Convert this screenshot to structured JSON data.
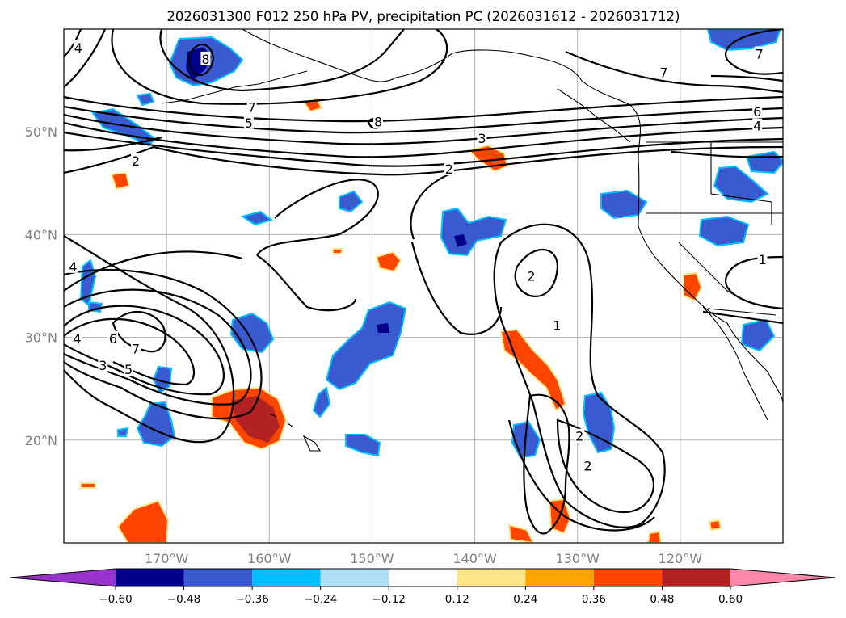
{
  "chart_data": {
    "type": "contour_map",
    "title": "2026031300 F012 250 hPa PV, precipitation PC (2026031612 - 2026031712)",
    "extent": {
      "lon": [
        -180,
        -110
      ],
      "lat": [
        10,
        60
      ]
    },
    "x_ticks": [
      {
        "lon": -170,
        "label": "170°W"
      },
      {
        "lon": -160,
        "label": "160°W"
      },
      {
        "lon": -150,
        "label": "150°W"
      },
      {
        "lon": -140,
        "label": "140°W"
      },
      {
        "lon": -130,
        "label": "130°W"
      },
      {
        "lon": -120,
        "label": "120°W"
      }
    ],
    "y_ticks": [
      {
        "lat": 20,
        "label": "20°N"
      },
      {
        "lat": 30,
        "label": "30°N"
      },
      {
        "lat": 40,
        "label": "40°N"
      },
      {
        "lat": 50,
        "label": "50°N"
      }
    ],
    "tick_color": "#808080",
    "grid": true,
    "colorbar": {
      "orientation": "horizontal",
      "extend": "both",
      "levels": [
        -0.6,
        -0.48,
        -0.36,
        -0.24,
        -0.12,
        0.12,
        0.24,
        0.36,
        0.48,
        0.6
      ],
      "tick_labels": [
        "−0.60",
        "−0.48",
        "−0.36",
        "−0.24",
        "−0.12",
        "0.12",
        "0.24",
        "0.36",
        "0.48",
        "0.60"
      ],
      "colors": [
        "#9932cc",
        "#00008b",
        "#3a5bd0",
        "#00bfff",
        "#b0e0f6",
        "#ffffff",
        "#fde68a",
        "#ffa500",
        "#ff4500",
        "#b22222",
        "#ff88aa"
      ]
    },
    "contour_labels": [
      {
        "text": "4",
        "lon": -178.6,
        "lat": 58.2
      },
      {
        "text": "8",
        "lon": -166.2,
        "lat": 57.1
      },
      {
        "text": "7",
        "lon": -161.7,
        "lat": 52.4
      },
      {
        "text": "5",
        "lon": -162.0,
        "lat": 50.9
      },
      {
        "text": "8",
        "lon": -149.4,
        "lat": 51.0
      },
      {
        "text": "2",
        "lon": -173.0,
        "lat": 47.2
      },
      {
        "text": "3",
        "lon": -139.3,
        "lat": 49.4
      },
      {
        "text": "2",
        "lon": -142.5,
        "lat": 46.4
      },
      {
        "text": "7",
        "lon": -121.6,
        "lat": 55.8
      },
      {
        "text": "7",
        "lon": -112.3,
        "lat": 57.6
      },
      {
        "text": "6",
        "lon": -112.5,
        "lat": 52.0
      },
      {
        "text": "4",
        "lon": -112.5,
        "lat": 50.6
      },
      {
        "text": "1",
        "lon": -112.0,
        "lat": 37.6
      },
      {
        "text": "4",
        "lon": -179.1,
        "lat": 36.9
      },
      {
        "text": "2",
        "lon": -134.5,
        "lat": 36.0
      },
      {
        "text": "1",
        "lon": -132.0,
        "lat": 31.2
      },
      {
        "text": "4",
        "lon": -178.7,
        "lat": 29.9
      },
      {
        "text": "6",
        "lon": -175.2,
        "lat": 29.9
      },
      {
        "text": "7",
        "lon": -173.0,
        "lat": 28.9
      },
      {
        "text": "3",
        "lon": -176.2,
        "lat": 27.3
      },
      {
        "text": "5",
        "lon": -173.7,
        "lat": 26.9
      },
      {
        "text": "2",
        "lon": -129.8,
        "lat": 20.4
      },
      {
        "text": "2",
        "lon": -129.0,
        "lat": 17.5
      }
    ]
  }
}
